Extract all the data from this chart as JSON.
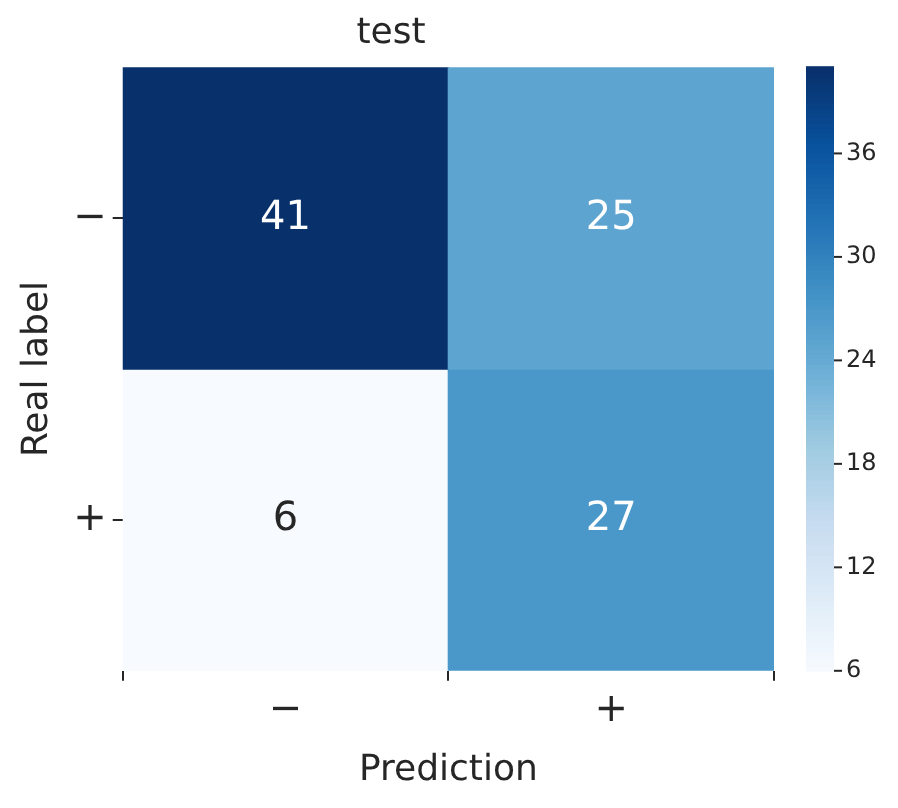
{
  "chart_data": {
    "type": "heatmap",
    "title": "test",
    "xlabel": "Prediction",
    "ylabel": "Real label",
    "categories": [
      "−",
      "+"
    ],
    "y_categories": [
      "−",
      "+"
    ],
    "cells": [
      [
        41,
        25
      ],
      [
        6,
        27
      ]
    ],
    "clim": [
      6,
      41
    ],
    "cticks": [
      6,
      12,
      18,
      24,
      30,
      36
    ],
    "data_labels": true
  }
}
